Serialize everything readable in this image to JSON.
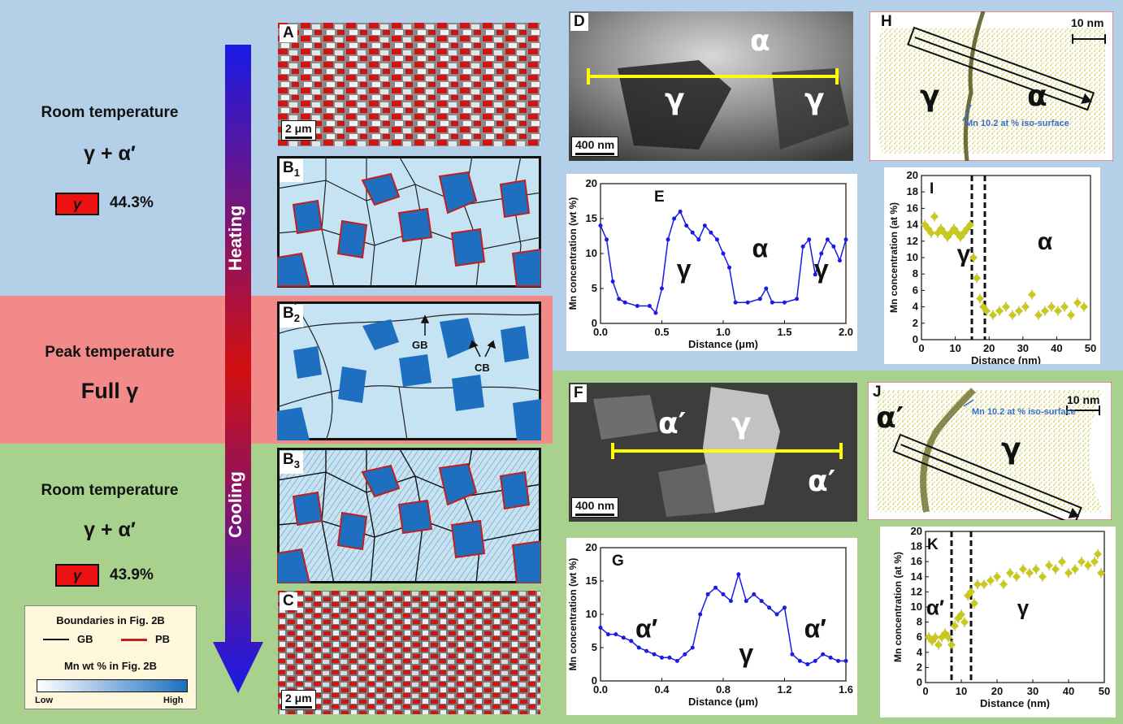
{
  "left_panel": {
    "top": {
      "title": "Room temperature",
      "phase": "γ + α′",
      "gamma_label": "γ",
      "percent": "44.3%"
    },
    "middle": {
      "title": "Peak temperature",
      "phase": "Full γ"
    },
    "bottom": {
      "title": "Room temperature",
      "phase": "γ + α′",
      "gamma_label": "γ",
      "percent": "43.9%"
    },
    "legend": {
      "title1": "Boundaries in Fig. 2B",
      "gb": "GB",
      "pb": "PB",
      "title2": "Mn wt % in Fig. 2B",
      "low": "Low",
      "high": "High",
      "gb_color": "#111111",
      "pb_color": "#c0201e"
    }
  },
  "arrow": {
    "heating": "Heating",
    "cooling": "Cooling"
  },
  "panels": {
    "A": {
      "letter": "A",
      "scale": "2 μm"
    },
    "B1": {
      "letter": "B",
      "sub": "1"
    },
    "B2": {
      "letter": "B",
      "sub": "2",
      "gb": "GB",
      "cb": "CB"
    },
    "B3": {
      "letter": "B",
      "sub": "3"
    },
    "C": {
      "letter": "C",
      "scale": "2 μm"
    },
    "D": {
      "letter": "D",
      "scale": "400 nm",
      "labels": [
        "α",
        "γ",
        "γ"
      ]
    },
    "F": {
      "letter": "F",
      "scale": "400 nm",
      "labels": [
        "α′",
        "γ",
        "α′"
      ]
    },
    "H": {
      "letter": "H",
      "scale": "10 nm",
      "labels": [
        "γ",
        "α"
      ],
      "iso": "Mn 10.2 at % iso-surface"
    },
    "J": {
      "letter": "J",
      "scale": "10 nm",
      "labels": [
        "α′",
        "γ"
      ],
      "iso": "Mn 10.2 at % iso-surface"
    }
  },
  "colors": {
    "austenite_red": "#ee1111",
    "blue_line": "#1a1ae6",
    "olive": "#c8c81e",
    "grain_blue": "#1e6fc0",
    "grain_light": "#c6e3f4"
  },
  "chart_data": [
    {
      "id": "E",
      "type": "line",
      "letter": "E",
      "xlabel": "Distance (μm)",
      "ylabel": "Mn concentration (wt %)",
      "xlim": [
        0,
        2.0
      ],
      "ylim": [
        0,
        20
      ],
      "xticks": [
        "0.0",
        "0.5",
        "1.0",
        "1.5",
        "2.0"
      ],
      "yticks": [
        "0",
        "5",
        "10",
        "15",
        "20"
      ],
      "annotations": [
        "γ",
        "α",
        "γ"
      ],
      "x": [
        0.0,
        0.05,
        0.1,
        0.15,
        0.2,
        0.3,
        0.4,
        0.45,
        0.5,
        0.55,
        0.6,
        0.65,
        0.7,
        0.75,
        0.8,
        0.85,
        0.9,
        0.95,
        1.0,
        1.05,
        1.1,
        1.2,
        1.3,
        1.35,
        1.4,
        1.5,
        1.6,
        1.65,
        1.7,
        1.75,
        1.8,
        1.85,
        1.9,
        1.95,
        2.0
      ],
      "y": [
        14,
        12,
        6,
        3.5,
        3,
        2.5,
        2.5,
        1.5,
        5,
        12,
        15,
        16,
        14,
        13,
        12,
        14,
        13,
        12,
        10,
        8,
        3,
        3,
        3.5,
        5,
        3,
        3,
        3.5,
        11,
        12,
        7,
        10,
        12,
        11,
        9,
        12
      ]
    },
    {
      "id": "G",
      "type": "line",
      "letter": "G",
      "xlabel": "Distance (μm)",
      "ylabel": "Mn concentration (wt %)",
      "xlim": [
        0,
        1.6
      ],
      "ylim": [
        0,
        20
      ],
      "xticks": [
        "0.0",
        "0.4",
        "0.8",
        "1.2",
        "1.6"
      ],
      "yticks": [
        "0",
        "5",
        "10",
        "15",
        "20"
      ],
      "annotations": [
        "α′",
        "γ",
        "α′"
      ],
      "x": [
        0.0,
        0.05,
        0.1,
        0.15,
        0.2,
        0.25,
        0.3,
        0.35,
        0.4,
        0.45,
        0.5,
        0.55,
        0.6,
        0.65,
        0.7,
        0.75,
        0.8,
        0.85,
        0.9,
        0.95,
        1.0,
        1.05,
        1.1,
        1.15,
        1.2,
        1.25,
        1.3,
        1.35,
        1.4,
        1.45,
        1.5,
        1.55,
        1.6
      ],
      "y": [
        8,
        7,
        7,
        6.5,
        6,
        5,
        4.5,
        4,
        3.5,
        3.5,
        3,
        4,
        5,
        10,
        13,
        14,
        13,
        12,
        16,
        12,
        13,
        12,
        11,
        10,
        11,
        4,
        3,
        2.5,
        3,
        4,
        3.5,
        3,
        3
      ]
    },
    {
      "id": "I",
      "type": "scatter",
      "letter": "I",
      "xlabel": "Distance (nm)",
      "ylabel": "Mn concentration (at %)",
      "xlim": [
        0,
        52
      ],
      "ylim": [
        0,
        20
      ],
      "xticks": [
        "0",
        "10",
        "20",
        "30",
        "40",
        "50"
      ],
      "yticks": [
        "0",
        "2",
        "4",
        "6",
        "8",
        "10",
        "12",
        "14",
        "16",
        "18",
        "20"
      ],
      "annotations": [
        "γ",
        "α"
      ],
      "dashed_x": [
        15.5,
        19.5
      ],
      "x": [
        1,
        2,
        3,
        4,
        5,
        6,
        7,
        8,
        9,
        10,
        11,
        12,
        13,
        14,
        15,
        16,
        17,
        18,
        19,
        20,
        22,
        24,
        26,
        28,
        30,
        32,
        34,
        36,
        38,
        40,
        42,
        44,
        46,
        48,
        50
      ],
      "y": [
        14,
        13.5,
        13,
        15,
        13,
        13.5,
        13,
        12.5,
        13,
        13.5,
        13,
        12.5,
        13,
        13.5,
        14,
        10,
        7.5,
        5,
        4,
        3.5,
        3,
        3.5,
        4,
        3,
        3.5,
        4,
        5.5,
        3,
        3.5,
        4,
        3.5,
        4,
        3,
        4.5,
        4
      ]
    },
    {
      "id": "K",
      "type": "scatter",
      "letter": "K",
      "xlabel": "Distance (nm)",
      "ylabel": "Mn concentration (at %)",
      "xlim": [
        0,
        55
      ],
      "ylim": [
        0,
        20
      ],
      "xticks": [
        "0",
        "10",
        "20",
        "30",
        "40",
        "50"
      ],
      "yticks": [
        "0",
        "2",
        "4",
        "6",
        "8",
        "10",
        "12",
        "14",
        "16",
        "18",
        "20"
      ],
      "annotations": [
        "α′",
        "γ"
      ],
      "dashed_x": [
        8,
        14
      ],
      "x": [
        1,
        2,
        3,
        4,
        5,
        6,
        7,
        8,
        9,
        10,
        11,
        12,
        13,
        14,
        15,
        16,
        18,
        20,
        22,
        24,
        26,
        28,
        30,
        32,
        34,
        36,
        38,
        40,
        42,
        44,
        46,
        48,
        50,
        52,
        53,
        54
      ],
      "y": [
        6,
        5.5,
        6,
        5,
        6,
        6.5,
        6,
        5,
        7.5,
        8.5,
        9,
        8,
        11.5,
        12,
        10.5,
        13,
        13,
        13.5,
        14,
        13,
        14.5,
        14,
        15,
        14.5,
        15,
        14,
        15.5,
        15,
        16,
        14.5,
        15,
        16,
        15.5,
        16,
        17,
        14.5
      ]
    }
  ]
}
